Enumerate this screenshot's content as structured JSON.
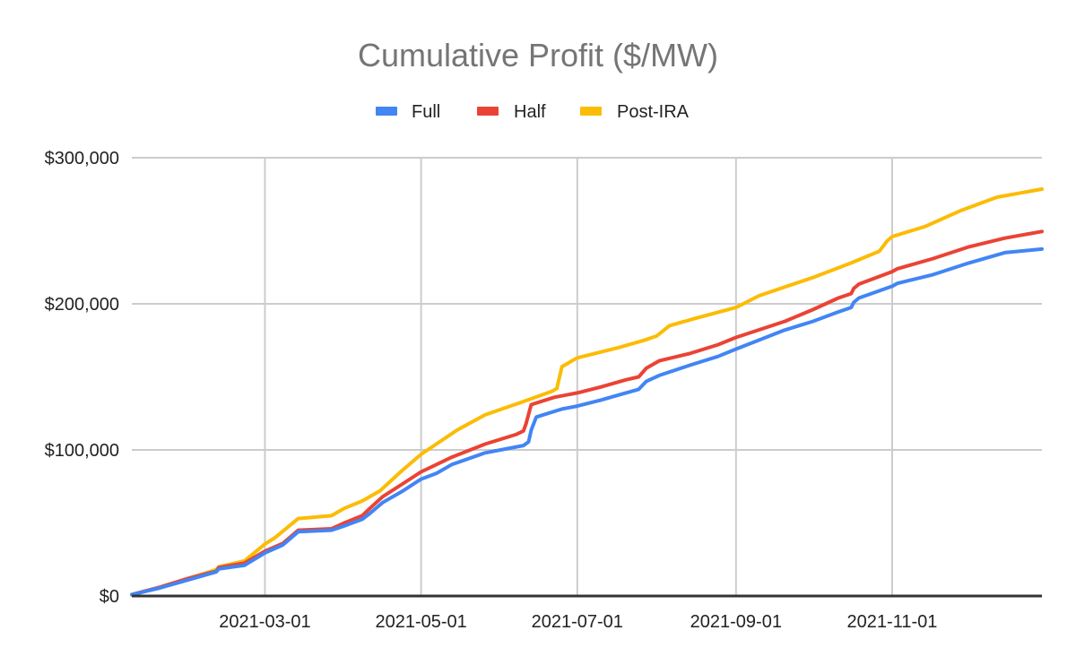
{
  "chart_data": {
    "type": "line",
    "title": "Cumulative Profit ($/MW)",
    "xlabel": "",
    "ylabel": "",
    "legend_position": "top",
    "grid": true,
    "x_unit": "day_of_year_2021",
    "xlim": [
      7,
      362.5
    ],
    "ylim": [
      0,
      300000
    ],
    "x_ticks": [
      {
        "label": "2021-03-01",
        "day": 59
      },
      {
        "label": "2021-05-01",
        "day": 120
      },
      {
        "label": "2021-07-01",
        "day": 181
      },
      {
        "label": "2021-09-01",
        "day": 243
      },
      {
        "label": "2021-11-01",
        "day": 304
      }
    ],
    "y_ticks": [
      {
        "label": "$0",
        "value": 0
      },
      {
        "label": "$100,000",
        "value": 100000
      },
      {
        "label": "$200,000",
        "value": 200000
      },
      {
        "label": "$300,000",
        "value": 300000
      }
    ],
    "series": [
      {
        "name": "Full",
        "color": "#4285F4",
        "points": [
          [
            7,
            1000
          ],
          [
            18,
            5500
          ],
          [
            29,
            11000
          ],
          [
            40,
            16500
          ],
          [
            41,
            18500
          ],
          [
            51,
            21000
          ],
          [
            59,
            29500
          ],
          [
            66,
            35000
          ],
          [
            72,
            44000
          ],
          [
            85,
            45000
          ],
          [
            90,
            48000
          ],
          [
            97,
            52500
          ],
          [
            100,
            56500
          ],
          [
            105,
            64000
          ],
          [
            113,
            72000
          ],
          [
            120,
            80000
          ],
          [
            126,
            84000
          ],
          [
            132,
            90000
          ],
          [
            145,
            98000
          ],
          [
            160,
            103000
          ],
          [
            162,
            105500
          ],
          [
            163,
            113500
          ],
          [
            165,
            122500
          ],
          [
            175,
            128000
          ],
          [
            181,
            130000
          ],
          [
            190,
            134000
          ],
          [
            200,
            139000
          ],
          [
            205,
            141500
          ],
          [
            208,
            147000
          ],
          [
            213,
            151000
          ],
          [
            225,
            158000
          ],
          [
            236,
            164000
          ],
          [
            243,
            169000
          ],
          [
            262,
            182000
          ],
          [
            273,
            188000
          ],
          [
            283,
            194500
          ],
          [
            288,
            197500
          ],
          [
            289,
            201000
          ],
          [
            291,
            204000
          ],
          [
            304,
            212000
          ],
          [
            306,
            214000
          ],
          [
            320,
            220000
          ],
          [
            334,
            228000
          ],
          [
            348,
            235000
          ],
          [
            362.5,
            237500
          ]
        ]
      },
      {
        "name": "Half",
        "color": "#EA4335",
        "points": [
          [
            7,
            1000
          ],
          [
            18,
            6000
          ],
          [
            29,
            12000
          ],
          [
            40,
            17000
          ],
          [
            41,
            19500
          ],
          [
            51,
            22500
          ],
          [
            59,
            30700
          ],
          [
            66,
            36000
          ],
          [
            72,
            45000
          ],
          [
            85,
            46000
          ],
          [
            90,
            50000
          ],
          [
            97,
            55000
          ],
          [
            100,
            60000
          ],
          [
            105,
            68000
          ],
          [
            113,
            77000
          ],
          [
            120,
            85000
          ],
          [
            126,
            90000
          ],
          [
            132,
            95000
          ],
          [
            145,
            104000
          ],
          [
            157,
            110500
          ],
          [
            160,
            113000
          ],
          [
            161,
            118000
          ],
          [
            163,
            131000
          ],
          [
            172,
            136000
          ],
          [
            181,
            139000
          ],
          [
            190,
            143000
          ],
          [
            200,
            148000
          ],
          [
            205,
            150000
          ],
          [
            208,
            156000
          ],
          [
            213,
            161000
          ],
          [
            225,
            166000
          ],
          [
            236,
            172000
          ],
          [
            243,
            177000
          ],
          [
            262,
            188000
          ],
          [
            273,
            196000
          ],
          [
            283,
            204000
          ],
          [
            288,
            207000
          ],
          [
            289,
            210500
          ],
          [
            291,
            213500
          ],
          [
            304,
            222000
          ],
          [
            306,
            224000
          ],
          [
            320,
            231000
          ],
          [
            334,
            239000
          ],
          [
            348,
            245000
          ],
          [
            362.5,
            249500
          ]
        ]
      },
      {
        "name": "Post-IRA",
        "color": "#FBBC04",
        "points": [
          [
            7,
            1000
          ],
          [
            18,
            6000
          ],
          [
            29,
            12000
          ],
          [
            40,
            18000
          ],
          [
            41,
            20000
          ],
          [
            51,
            24000
          ],
          [
            59,
            35600
          ],
          [
            63,
            40000
          ],
          [
            72,
            53000
          ],
          [
            85,
            55000
          ],
          [
            90,
            60000
          ],
          [
            97,
            65000
          ],
          [
            104,
            72000
          ],
          [
            112,
            85000
          ],
          [
            120,
            97000
          ],
          [
            134,
            113500
          ],
          [
            145,
            124000
          ],
          [
            159,
            132500
          ],
          [
            171,
            140000
          ],
          [
            173,
            142000
          ],
          [
            175,
            157000
          ],
          [
            181,
            163000
          ],
          [
            197,
            170000
          ],
          [
            207,
            175000
          ],
          [
            212,
            178000
          ],
          [
            217,
            185000
          ],
          [
            227,
            190000
          ],
          [
            243,
            197500
          ],
          [
            252,
            205500
          ],
          [
            273,
            218000
          ],
          [
            288,
            228000
          ],
          [
            299,
            236000
          ],
          [
            302,
            243000
          ],
          [
            304,
            246000
          ],
          [
            317,
            253000
          ],
          [
            331,
            264000
          ],
          [
            345,
            273000
          ],
          [
            362.5,
            278500
          ]
        ]
      }
    ]
  }
}
